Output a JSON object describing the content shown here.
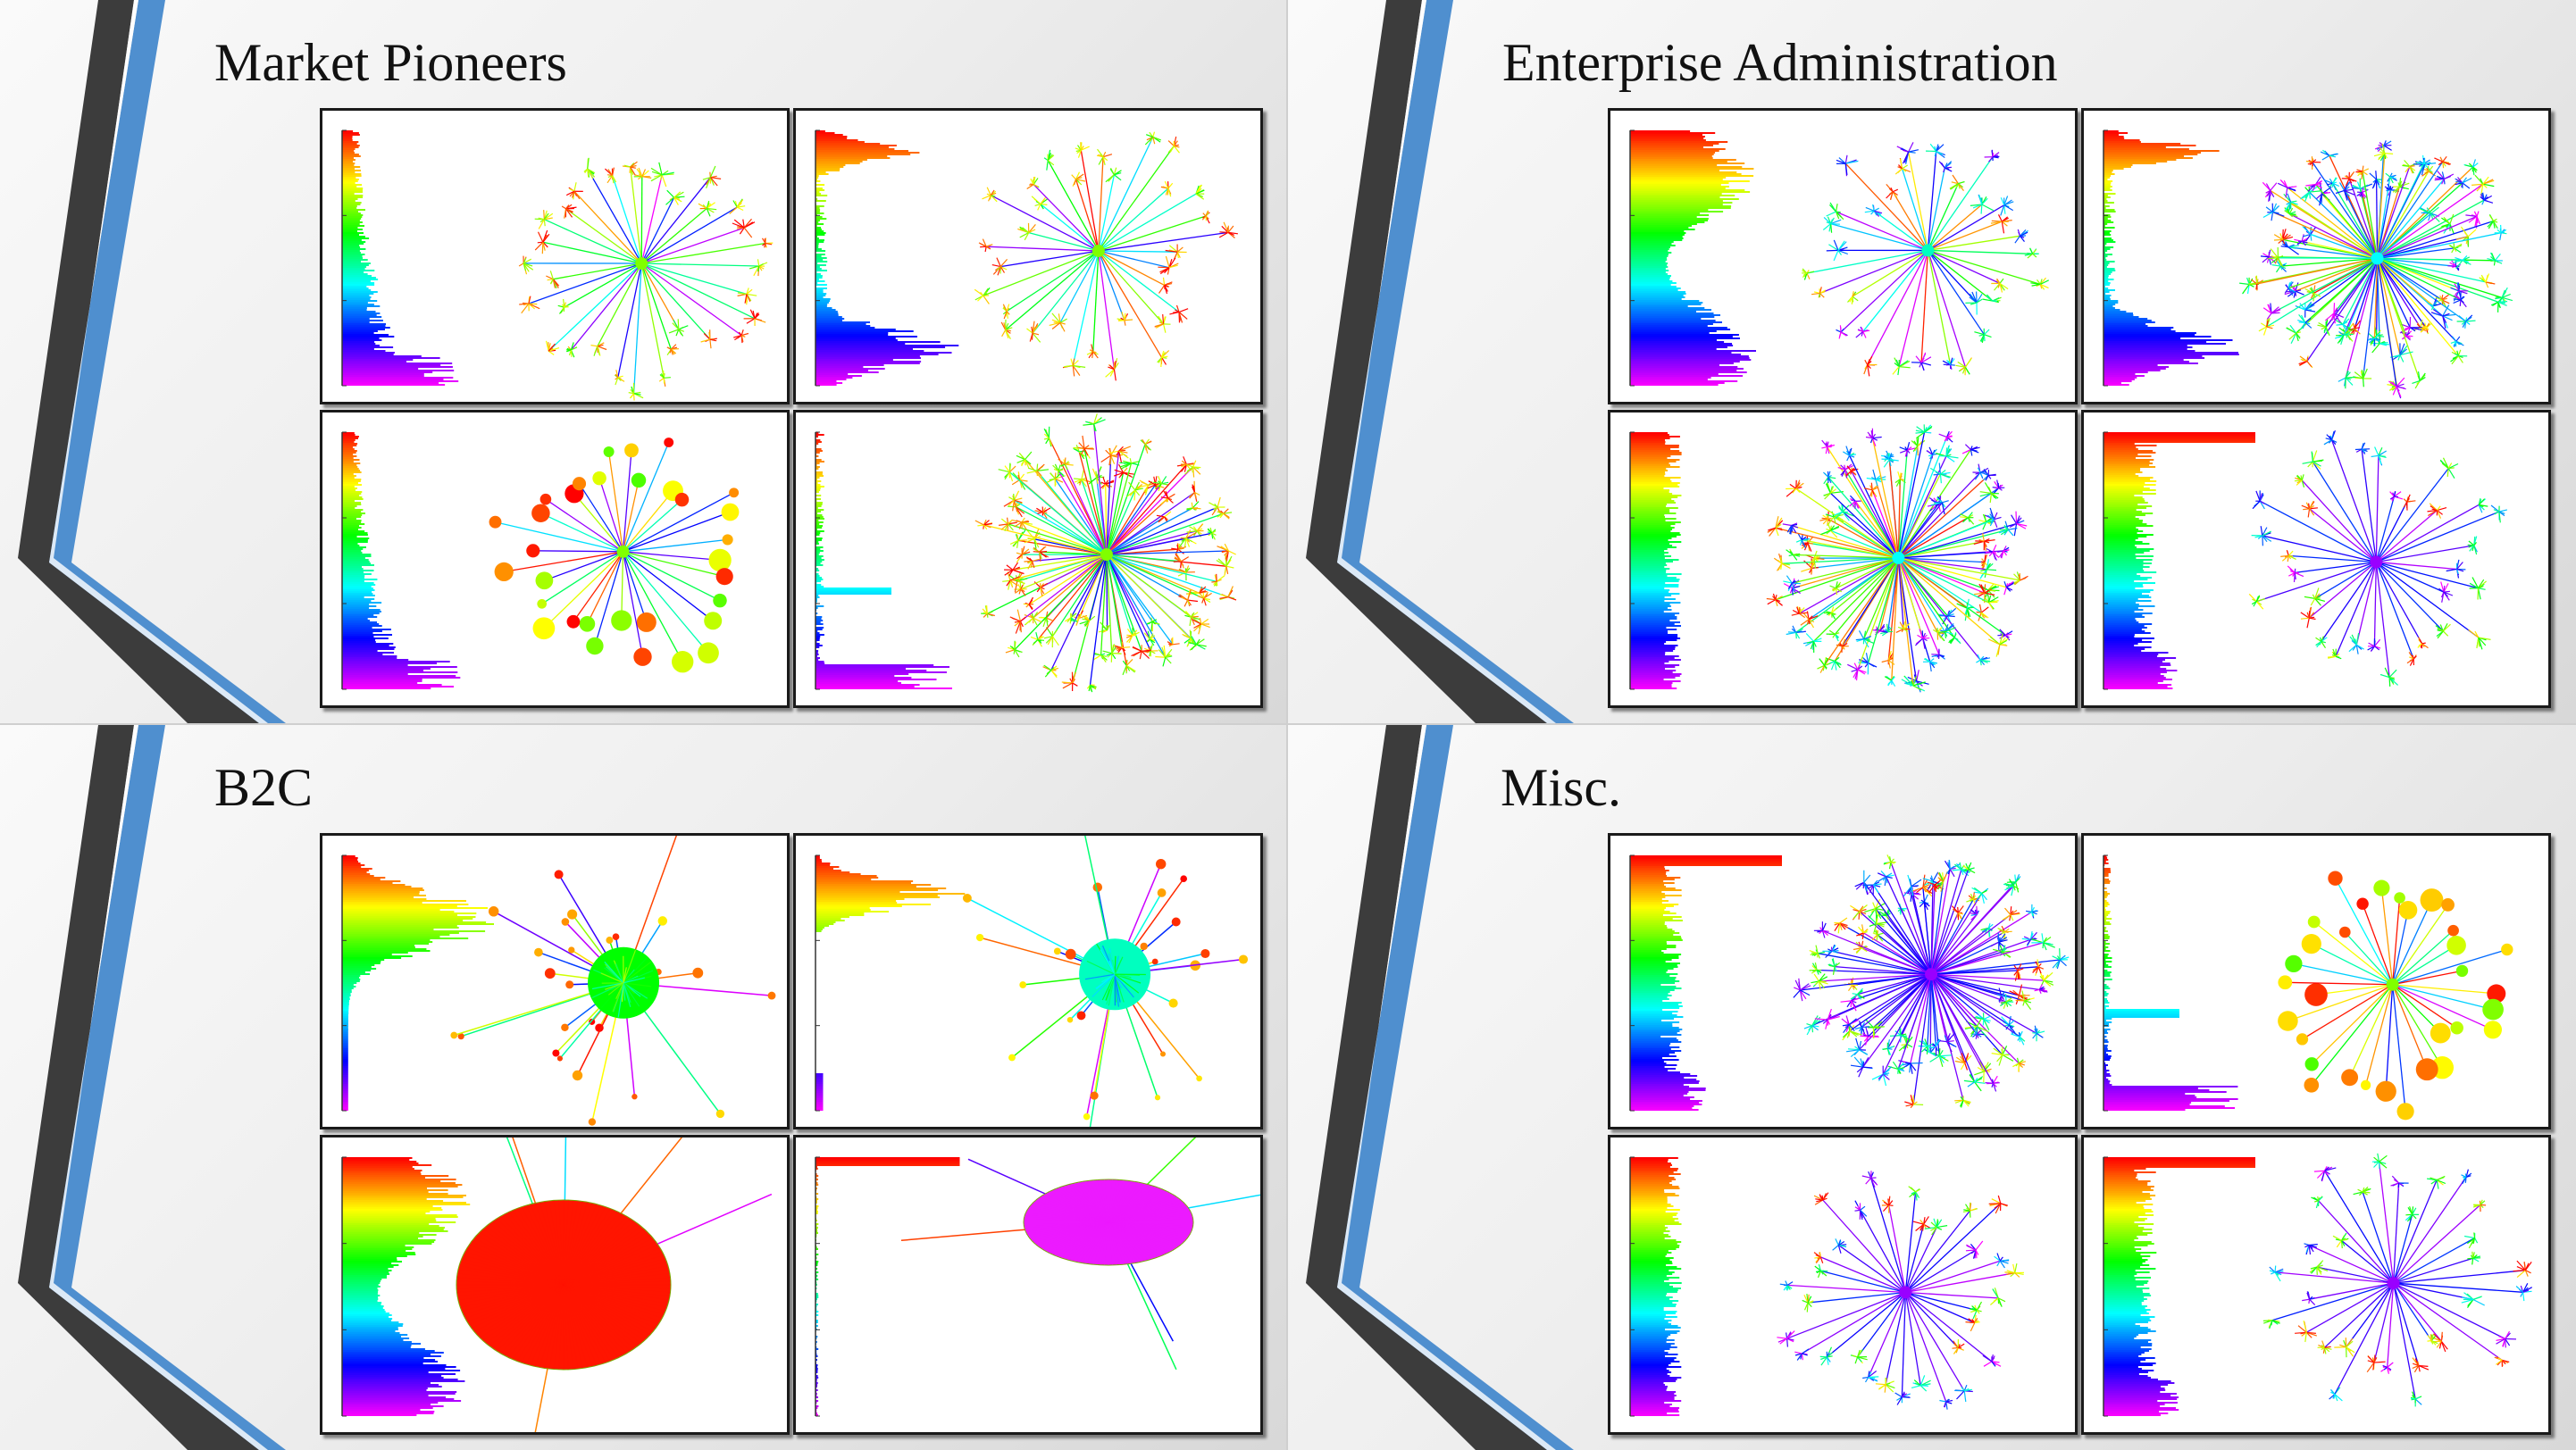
{
  "quadrants": [
    {
      "title": "Market Pioneers",
      "panels": [
        {
          "hist": "shallow-top",
          "graph": "multi-cluster"
        },
        {
          "hist": "bimodal",
          "graph": "multi-cluster"
        },
        {
          "hist": "shallow-top",
          "graph": "bubbles"
        },
        {
          "hist": "low-spikes",
          "graph": "dense-orange"
        }
      ]
    },
    {
      "title": "Enterprise Administration",
      "panels": [
        {
          "hist": "wide",
          "graph": "cyan-hub"
        },
        {
          "hist": "bimodal",
          "graph": "dense-star"
        },
        {
          "hist": "uniform",
          "graph": "dense-star"
        },
        {
          "hist": "top-spike",
          "graph": "violet-hub"
        }
      ]
    },
    {
      "title": "B2C",
      "panels": [
        {
          "hist": "blue-peak",
          "graph": "green-hub"
        },
        {
          "hist": "blue-only",
          "graph": "cyan-blob"
        },
        {
          "hist": "wide",
          "graph": "red-ellipse"
        },
        {
          "hist": "top-line",
          "graph": "magenta-ellipse"
        }
      ]
    },
    {
      "title": "Misc.",
      "panels": [
        {
          "hist": "top-spike",
          "graph": "violet-dense"
        },
        {
          "hist": "low-spikes",
          "graph": "orange-clusters"
        },
        {
          "hist": "uniform",
          "graph": "violet-hub"
        },
        {
          "hist": "top-spike",
          "graph": "violet-hub"
        }
      ]
    }
  ],
  "colors": {
    "accent_blue": "#4f8fcf",
    "dark_stripe": "#3a3a3a"
  }
}
